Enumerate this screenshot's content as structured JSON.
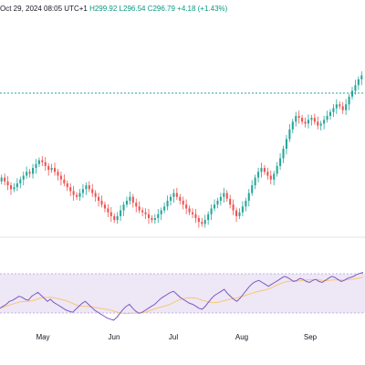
{
  "header": {
    "date_text": "Oct 29, 2024 08:05 UTC+1",
    "ohlc_text": "H299.92  L296.54  C296.79  +4.18 (+1.43%)"
  },
  "colors": {
    "up": "#26a69a",
    "down": "#ef5350",
    "rsi_line": "#7e57c2",
    "rsi_ma": "#f7c873",
    "rsi_band": "#ede7f6",
    "guide_line": "#26a69a"
  },
  "chart_data": [
    {
      "type": "candlestick",
      "x_axis_labels": [
        "May",
        "Jun",
        "Jul",
        "Aug",
        "Sep"
      ],
      "values_close": [
        280,
        278,
        276,
        274,
        275,
        277,
        279,
        281,
        283,
        282,
        285,
        287,
        289,
        288,
        286,
        284,
        285,
        283,
        281,
        279,
        277,
        275,
        273,
        271,
        270,
        272,
        274,
        276,
        274,
        272,
        270,
        268,
        266,
        264,
        262,
        260,
        258,
        260,
        263,
        266,
        268,
        270,
        267,
        265,
        263,
        262,
        261,
        259,
        258,
        259,
        261,
        263,
        265,
        268,
        270,
        272,
        270,
        268,
        266,
        264,
        262,
        261,
        259,
        257,
        256,
        258,
        261,
        264,
        266,
        268,
        270,
        272,
        269,
        266,
        263,
        260,
        262,
        265,
        268,
        272,
        276,
        280,
        283,
        285,
        283,
        281,
        279,
        282,
        286,
        290,
        295,
        300,
        305,
        309,
        312,
        311,
        309,
        308,
        310,
        311,
        309,
        307,
        308,
        310,
        312,
        314,
        316,
        318,
        317,
        315,
        318,
        322,
        325,
        328,
        331,
        333
      ]
    },
    {
      "type": "line",
      "name": "",
      "values": [
        38,
        40,
        42,
        45,
        46,
        48,
        50,
        49,
        47,
        46,
        50,
        52,
        54,
        51,
        48,
        45,
        47,
        44,
        42,
        40,
        38,
        36,
        35,
        34,
        37,
        40,
        43,
        45,
        42,
        39,
        36,
        34,
        32,
        30,
        28,
        27,
        26,
        29,
        33,
        37,
        40,
        42,
        38,
        35,
        33,
        34,
        36,
        38,
        40,
        42,
        45,
        48,
        50,
        52,
        54,
        55,
        52,
        49,
        47,
        45,
        43,
        42,
        40,
        38,
        37,
        40,
        44,
        48,
        51,
        53,
        55,
        57,
        53,
        50,
        47,
        45,
        48,
        52,
        56,
        60,
        63,
        65,
        66,
        64,
        62,
        60,
        62,
        64,
        66,
        68,
        70,
        69,
        67,
        65,
        66,
        68,
        67,
        65,
        64,
        66,
        67,
        65,
        64,
        66,
        68,
        70,
        69,
        67,
        65,
        66,
        68,
        69,
        70,
        72,
        73,
        74
      ]
    }
  ]
}
